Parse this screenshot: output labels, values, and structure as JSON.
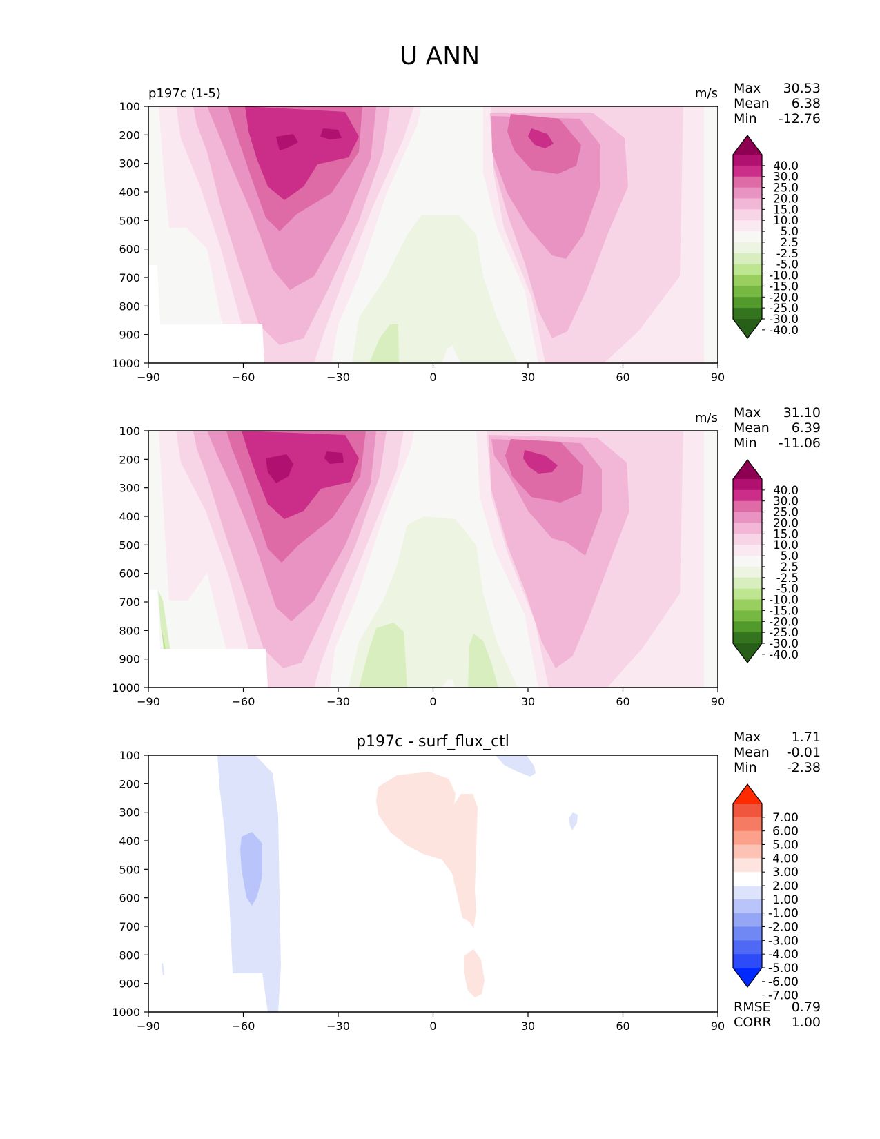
{
  "figure_title": "U ANN",
  "colors": {
    "pink_levels": [
      "#f7f7f5",
      "#fbe9f1",
      "#f8d5e6",
      "#f2b6d6",
      "#e993c2",
      "#de6aa6",
      "#ca2e88",
      "#b01170",
      "#8e0152"
    ],
    "green_levels": [
      "#f7f7f5",
      "#edf5e2",
      "#d8eebf",
      "#bee58f",
      "#98cf5f",
      "#76b842",
      "#529a2c",
      "#34741f",
      "#275f19"
    ],
    "diff_reds": [
      "#fde4df",
      "#fcc2b4",
      "#fba08b",
      "#f57c63",
      "#ef563d",
      "#ff2a00"
    ],
    "diff_blues": [
      "#dde3fb",
      "#b9c5fa",
      "#95a6f5",
      "#7088f4",
      "#5069f5",
      "#2d4cf8",
      "#0029ff"
    ]
  },
  "chart_data": [
    {
      "type": "heatmap",
      "title": "p197c (1-5)",
      "units": "m/s",
      "stats": {
        "labels": [
          "Max",
          "Mean",
          "Min"
        ],
        "values": [
          "30.53",
          "6.38",
          "-12.76"
        ]
      },
      "x_ticks": [
        "−90",
        "−60",
        "−30",
        "0",
        "30",
        "60",
        "90"
      ],
      "y_ticks": [
        "100",
        "200",
        "300",
        "400",
        "500",
        "600",
        "700",
        "800",
        "900",
        "1000"
      ],
      "xlim": [
        -90,
        90
      ],
      "ylim": [
        100,
        1000
      ],
      "colorbar": {
        "ticks": [
          "40.0",
          "30.0",
          "25.0",
          "20.0",
          "15.0",
          "10.0",
          "5.0",
          "2.5",
          "-2.5",
          "-5.0",
          "-10.0",
          "-15.0",
          "-20.0",
          "-25.0",
          "-30.0",
          "-40.0"
        ],
        "extend": "both"
      },
      "features": [
        {
          "kind": "jet",
          "lat": -47,
          "p": 220,
          "peak": 30.5,
          "w": 11,
          "h": 170
        },
        {
          "kind": "jet",
          "lat": -32,
          "p": 200,
          "peak": 30,
          "w": 8,
          "h": 150
        },
        {
          "kind": "jet",
          "lat": 35,
          "p": 230,
          "peak": 27,
          "w": 11,
          "h": 200
        },
        {
          "kind": "trade",
          "lat": -8,
          "p": 900,
          "peak": -8,
          "w": 12,
          "h": 300
        },
        {
          "kind": "trade",
          "lat": -88,
          "p": 820,
          "peak": -12.76,
          "w": 2,
          "h": 120
        }
      ]
    },
    {
      "type": "heatmap",
      "title": "",
      "units": "m/s",
      "stats": {
        "labels": [
          "Max",
          "Mean",
          "Min"
        ],
        "values": [
          "31.10",
          "6.39",
          "-11.06"
        ]
      },
      "x_ticks": [
        "−90",
        "−60",
        "−30",
        "0",
        "30",
        "60",
        "90"
      ],
      "y_ticks": [
        "100",
        "200",
        "300",
        "400",
        "500",
        "600",
        "700",
        "800",
        "900",
        "1000"
      ],
      "xlim": [
        -90,
        90
      ],
      "ylim": [
        100,
        1000
      ],
      "colorbar": {
        "ticks": [
          "40.0",
          "30.0",
          "25.0",
          "20.0",
          "15.0",
          "10.0",
          "5.0",
          "2.5",
          "-2.5",
          "-5.0",
          "-10.0",
          "-15.0",
          "-20.0",
          "-25.0",
          "-30.0",
          "-40.0"
        ],
        "extend": "both"
      },
      "features": [
        {
          "kind": "jet",
          "lat": -48,
          "p": 225,
          "peak": 31.1,
          "w": 11,
          "h": 170
        },
        {
          "kind": "jet",
          "lat": -32,
          "p": 200,
          "peak": 30,
          "w": 8,
          "h": 150
        },
        {
          "kind": "jet",
          "lat": 35,
          "p": 240,
          "peak": 28,
          "w": 11,
          "h": 200
        },
        {
          "kind": "trade",
          "lat": -15,
          "p": 900,
          "peak": -9,
          "w": 9,
          "h": 250
        },
        {
          "kind": "trade",
          "lat": 14,
          "p": 900,
          "peak": -8,
          "w": 4,
          "h": 200
        },
        {
          "kind": "trade",
          "lat": -88,
          "p": 820,
          "peak": -11.06,
          "w": 2,
          "h": 120
        }
      ]
    },
    {
      "type": "heatmap",
      "title": "p197c - surf_flux_ctl",
      "units": "",
      "stats": {
        "labels": [
          "Max",
          "Mean",
          "Min"
        ],
        "values": [
          "1.71",
          "-0.01",
          "-2.38"
        ]
      },
      "x_ticks": [
        "−90",
        "−60",
        "−30",
        "0",
        "30",
        "60",
        "90"
      ],
      "y_ticks": [
        "100",
        "200",
        "300",
        "400",
        "500",
        "600",
        "700",
        "800",
        "900",
        "1000"
      ],
      "xlim": [
        -90,
        90
      ],
      "ylim": [
        100,
        1000
      ],
      "colorbar": {
        "ticks": [
          "7.00",
          "6.00",
          "5.00",
          "4.00",
          "3.00",
          "2.00",
          "1.00",
          "-1.00",
          "-2.00",
          "-3.00",
          "-4.00",
          "-5.00",
          "-6.00",
          "-7.00"
        ],
        "extend": "both"
      },
      "features": [
        {
          "kind": "neg",
          "lat": -58,
          "p": 330,
          "value": -2.38
        },
        {
          "kind": "neg",
          "lat": -57,
          "p": 600,
          "value": -1.5
        },
        {
          "kind": "pos",
          "lat": 5,
          "p": 300,
          "value": 1.71
        },
        {
          "kind": "pos",
          "lat": 13,
          "p": 850,
          "value": 1.3
        },
        {
          "kind": "neg",
          "lat": 28,
          "p": 130,
          "value": -1.2
        }
      ],
      "extra_stats": {
        "labels": [
          "RMSE",
          "CORR"
        ],
        "values": [
          "0.79",
          "1.00"
        ]
      }
    }
  ]
}
